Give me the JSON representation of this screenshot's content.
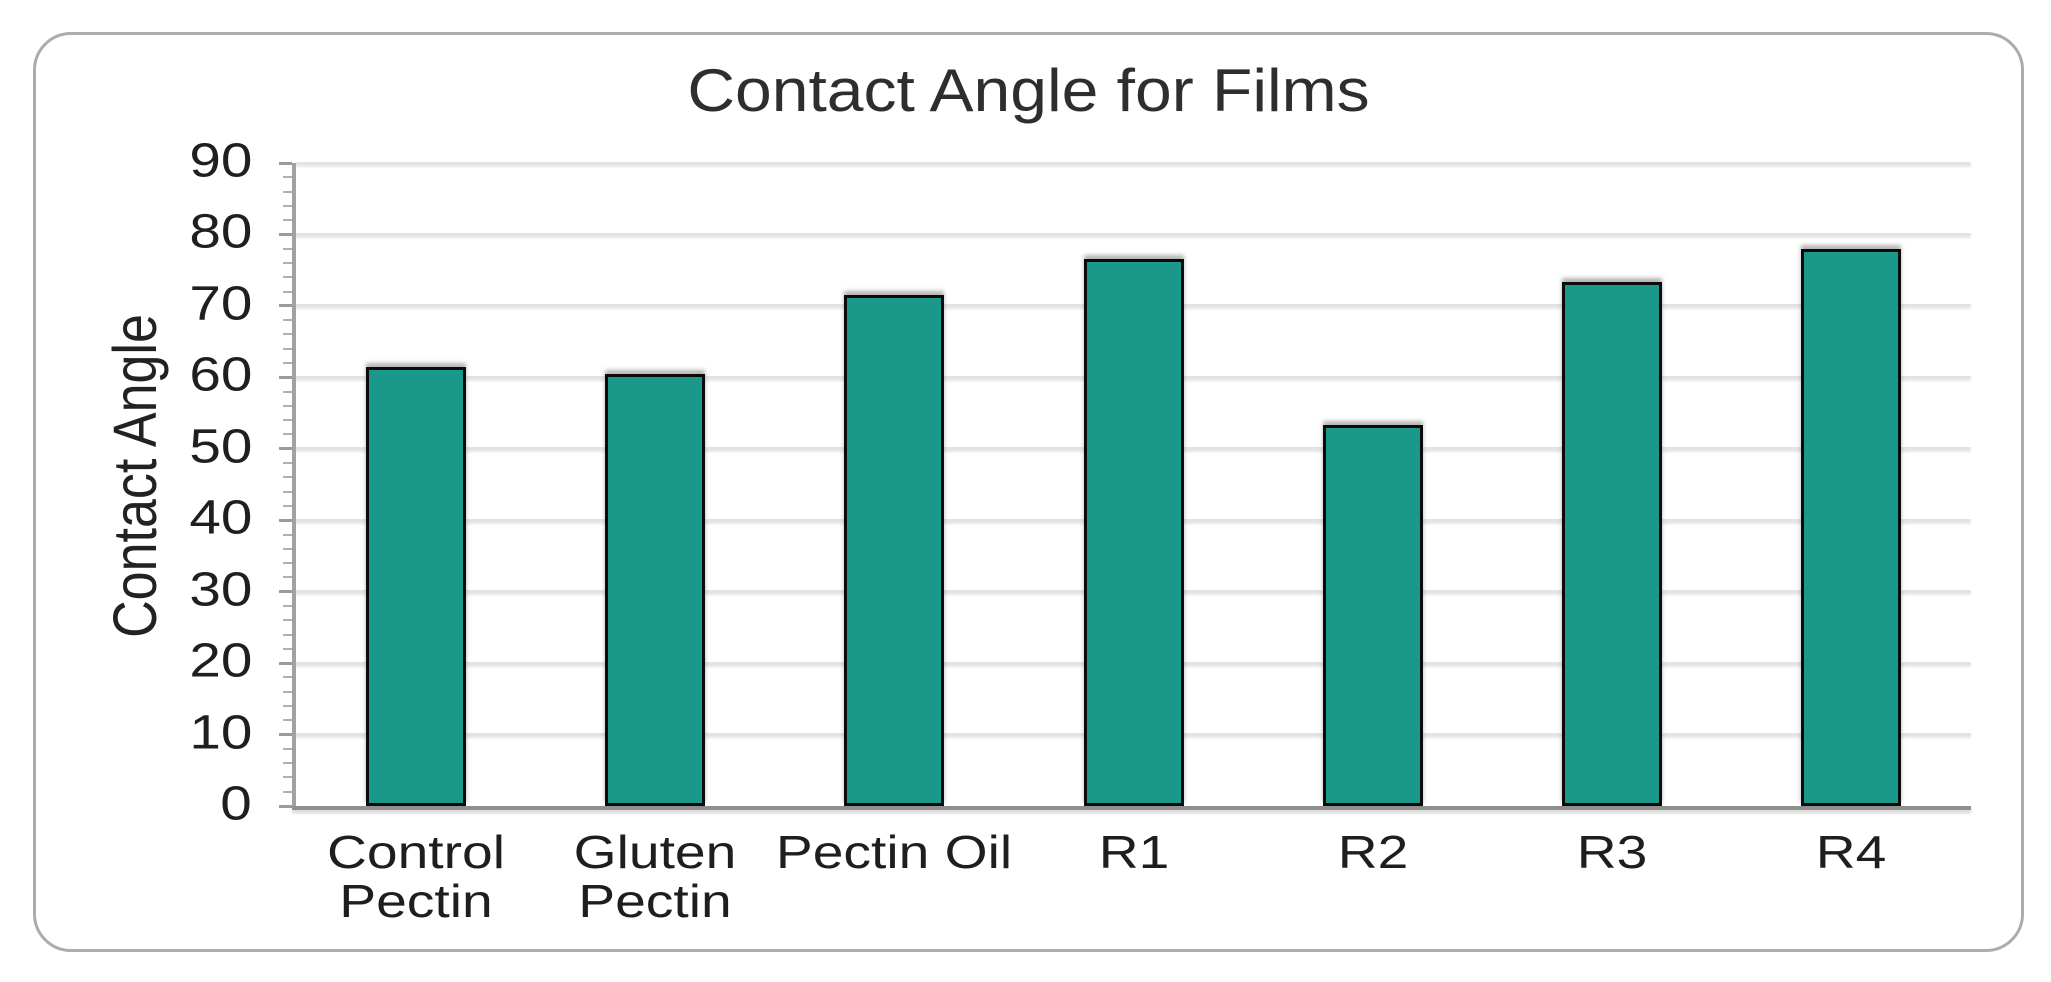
{
  "chart_data": {
    "type": "bar",
    "title": "Contact Angle for Films",
    "xlabel": "",
    "ylabel": "Contact Angle",
    "categories": [
      "Control Pectin",
      "Gluten Pectin",
      "Pectin Oil",
      "R1",
      "R2",
      "R3",
      "R4"
    ],
    "values": [
      61.5,
      60.4,
      71.5,
      76.6,
      53.3,
      73.4,
      78.0
    ],
    "ylim": [
      0,
      90
    ],
    "yticks": [
      0,
      10,
      20,
      30,
      40,
      50,
      60,
      70,
      80,
      90
    ],
    "minor_tick_interval": 2,
    "grid": "horizontal",
    "legend_position": "none",
    "bar_fill": "#1A998B",
    "bar_border": "#0B0B0B"
  },
  "colors": {
    "gridline": "#E3E3E3",
    "y_axis_line": "#A2A2A2",
    "x_axis_line": "#8F8F8F",
    "tick": "#9B9B9B",
    "text": "#1F1F1F",
    "title_text": "#2E2E2E",
    "frame_border": "#ACACAC",
    "background": "#FFFFFF"
  }
}
